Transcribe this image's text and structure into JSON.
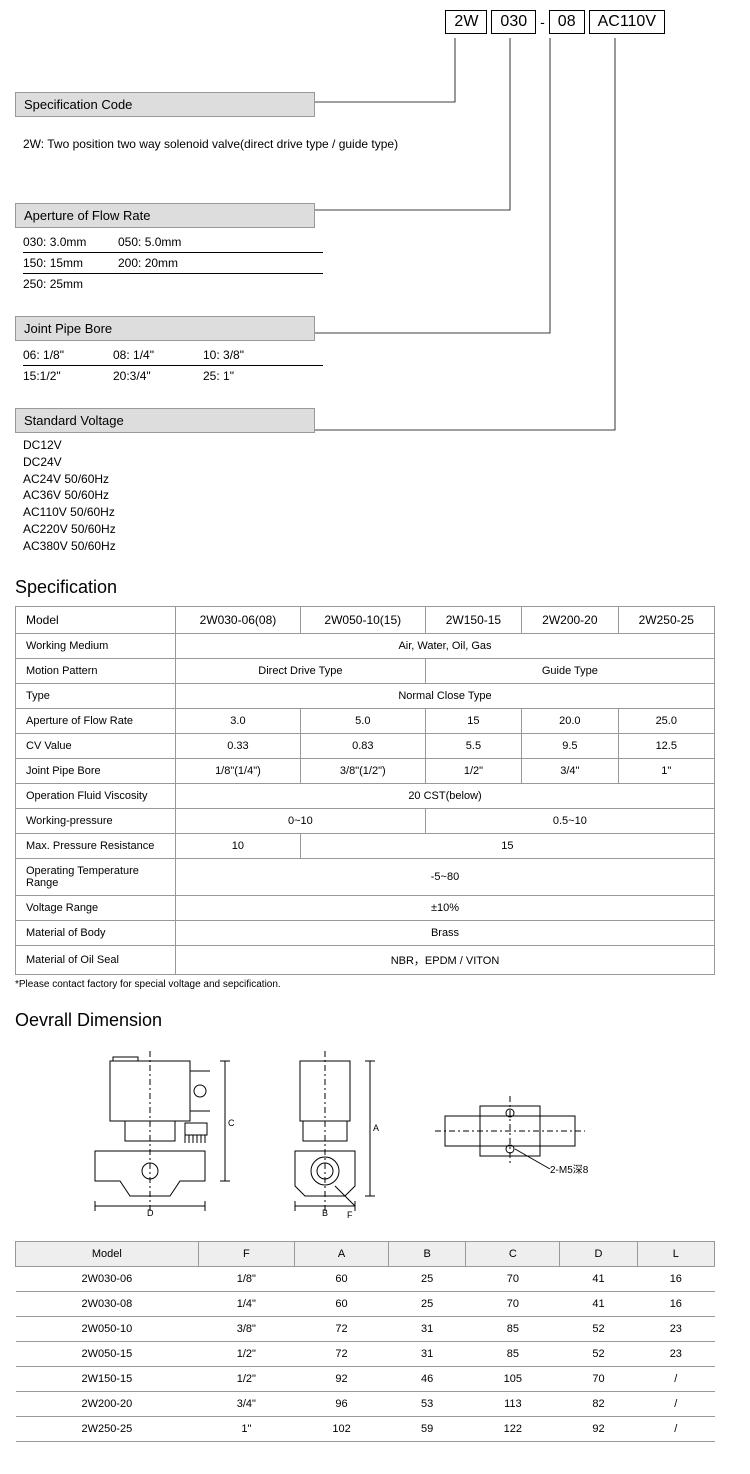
{
  "code_example": {
    "parts": [
      "2W",
      "030",
      "08",
      "AC110V"
    ]
  },
  "sections": {
    "spec_code": {
      "title": "Specification Code",
      "content": "2W: Two position two way solenoid valve(direct drive type / guide type)"
    },
    "aperture": {
      "title": "Aperture of Flow Rate",
      "rows": [
        [
          "030: 3.0mm",
          "050: 5.0mm"
        ],
        [
          "150: 15mm",
          "200: 20mm"
        ],
        [
          "250: 25mm"
        ]
      ]
    },
    "joint": {
      "title": "Joint Pipe Bore",
      "rows": [
        [
          "06: 1/8\"",
          "08: 1/4\"",
          "10: 3/8\""
        ],
        [
          "15:1/2\"",
          "20:3/4\"",
          "25: 1\""
        ]
      ]
    },
    "voltage": {
      "title": "Standard Voltage",
      "items": [
        "DC12V",
        "DC24V",
        "AC24V  50/60Hz",
        "AC36V  50/60Hz",
        "AC110V  50/60Hz",
        "AC220V  50/60Hz",
        "AC380V  50/60Hz"
      ]
    }
  },
  "spec_heading": "Specification",
  "spec_table": {
    "header": [
      "Model",
      "2W030-06(08)",
      "2W050-10(15)",
      "2W150-15",
      "2W200-20",
      "2W250-25"
    ],
    "rows": [
      {
        "label": "Working Medium",
        "spans": [
          {
            "colspan": 5,
            "text": "Air, Water, Oil, Gas"
          }
        ]
      },
      {
        "label": "Motion Pattern",
        "spans": [
          {
            "colspan": 2,
            "text": "Direct Drive Type"
          },
          {
            "colspan": 3,
            "text": "Guide Type"
          }
        ]
      },
      {
        "label": "Type",
        "spans": [
          {
            "colspan": 5,
            "text": "Normal Close Type"
          }
        ]
      },
      {
        "label": "Aperture of Flow Rate",
        "spans": [
          {
            "colspan": 1,
            "text": "3.0"
          },
          {
            "colspan": 1,
            "text": "5.0"
          },
          {
            "colspan": 1,
            "text": "15"
          },
          {
            "colspan": 1,
            "text": "20.0"
          },
          {
            "colspan": 1,
            "text": "25.0"
          }
        ]
      },
      {
        "label": "CV Value",
        "spans": [
          {
            "colspan": 1,
            "text": "0.33"
          },
          {
            "colspan": 1,
            "text": "0.83"
          },
          {
            "colspan": 1,
            "text": "5.5"
          },
          {
            "colspan": 1,
            "text": "9.5"
          },
          {
            "colspan": 1,
            "text": "12.5"
          }
        ]
      },
      {
        "label": "Joint Pipe Bore",
        "spans": [
          {
            "colspan": 1,
            "text": "1/8\"(1/4\")"
          },
          {
            "colspan": 1,
            "text": "3/8\"(1/2\")"
          },
          {
            "colspan": 1,
            "text": "1/2\""
          },
          {
            "colspan": 1,
            "text": "3/4\""
          },
          {
            "colspan": 1,
            "text": "1\""
          }
        ]
      },
      {
        "label": "Operation Fluid Viscosity",
        "spans": [
          {
            "colspan": 5,
            "text": "20  CST(below)"
          }
        ]
      },
      {
        "label": "Working-pressure",
        "spans": [
          {
            "colspan": 2,
            "text": "0~10"
          },
          {
            "colspan": 3,
            "text": "0.5~10"
          }
        ]
      },
      {
        "label": "Max. Pressure Resistance",
        "spans": [
          {
            "colspan": 1,
            "text": "10"
          },
          {
            "colspan": 4,
            "text": "15"
          }
        ]
      },
      {
        "label": "Operating Temperature Range",
        "spans": [
          {
            "colspan": 5,
            "text": "-5~80"
          }
        ]
      },
      {
        "label": "Voltage Range",
        "spans": [
          {
            "colspan": 5,
            "text": "±10%"
          }
        ]
      },
      {
        "label": "Material of Body",
        "spans": [
          {
            "colspan": 5,
            "text": "Brass"
          }
        ]
      },
      {
        "label": "Material of Oil Seal",
        "spans": [
          {
            "colspan": 5,
            "text": "NBR，EPDM / VITON"
          }
        ]
      }
    ],
    "note": "*Please contact factory for special voltage and sepcification."
  },
  "dimension_heading": "Oevrall Dimension",
  "diagram_label": "2-M5深8",
  "dim_table": {
    "header": [
      "Model",
      "F",
      "A",
      "B",
      "C",
      "D",
      "L"
    ],
    "rows": [
      [
        "2W030-06",
        "1/8\"",
        "60",
        "25",
        "70",
        "41",
        "16"
      ],
      [
        "2W030-08",
        "1/4\"",
        "60",
        "25",
        "70",
        "41",
        "16"
      ],
      [
        "2W050-10",
        "3/8\"",
        "72",
        "31",
        "85",
        "52",
        "23"
      ],
      [
        "2W050-15",
        "1/2\"",
        "72",
        "31",
        "85",
        "52",
        "23"
      ],
      [
        "2W150-15",
        "1/2\"",
        "92",
        "46",
        "105",
        "70",
        "/"
      ],
      [
        "2W200-20",
        "3/4\"",
        "96",
        "53",
        "113",
        "82",
        "/"
      ],
      [
        "2W250-25",
        "1\"",
        "102",
        "59",
        "122",
        "92",
        "/"
      ]
    ]
  },
  "colors": {
    "header_bg": "#dddddd",
    "border": "#999999",
    "dim_header_bg": "#eeeeee"
  }
}
